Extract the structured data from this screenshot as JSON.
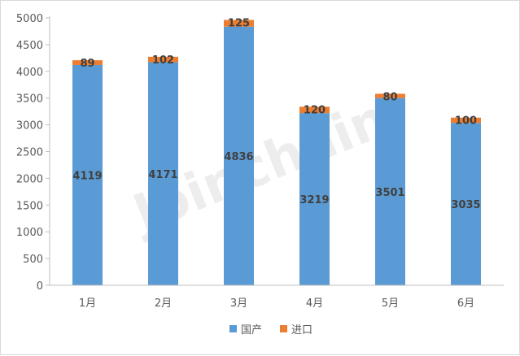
{
  "chart_data": {
    "type": "bar",
    "stacked": true,
    "categories": [
      "1月",
      "2月",
      "3月",
      "4月",
      "5月",
      "6月"
    ],
    "series": [
      {
        "name": "国产",
        "values": [
          4119,
          4171,
          4836,
          3219,
          3501,
          3035
        ],
        "color": "#5b9bd5"
      },
      {
        "name": "进口",
        "values": [
          89,
          102,
          125,
          120,
          80,
          100
        ],
        "color": "#ed7d31"
      }
    ],
    "ylim": [
      0,
      5000
    ],
    "yticks": [
      0,
      500,
      1000,
      1500,
      2000,
      2500,
      3000,
      3500,
      4000,
      4500,
      5000
    ],
    "grid": false,
    "legend": "bottom",
    "title": "",
    "xlabel": "",
    "ylabel": ""
  },
  "watermark": "Joinchain"
}
